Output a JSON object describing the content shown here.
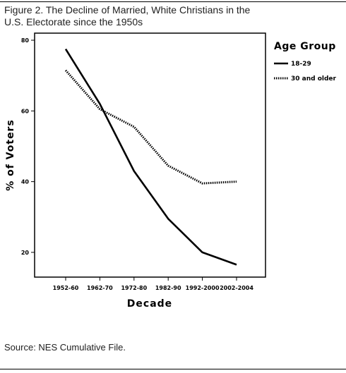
{
  "figure": {
    "caption_line1": "Figure 2. The Decline of Married, White Christians in the",
    "caption_line2": "U.S. Electorate since the 1950s",
    "source": "Source: NES Cumulative File."
  },
  "chart_data": {
    "type": "line",
    "title": "",
    "xlabel": "Decade",
    "ylabel": "% of Voters",
    "categories": [
      "1952-60",
      "1962-70",
      "1972-80",
      "1982-90",
      "1992-2000",
      "2002-2004"
    ],
    "yticks": [
      20,
      40,
      60,
      80
    ],
    "ylim": [
      13,
      82
    ],
    "grid": false,
    "legend": {
      "title": "Age Group",
      "position": "right"
    },
    "series": [
      {
        "name": "18-29",
        "style": "solid",
        "color": "#000000",
        "values": [
          77.5,
          62.0,
          43.0,
          29.5,
          20.0,
          16.5
        ]
      },
      {
        "name": "30 and older",
        "style": "dotted",
        "color": "#000000",
        "values": [
          71.5,
          60.5,
          55.5,
          44.5,
          39.5,
          40.0
        ]
      }
    ]
  }
}
